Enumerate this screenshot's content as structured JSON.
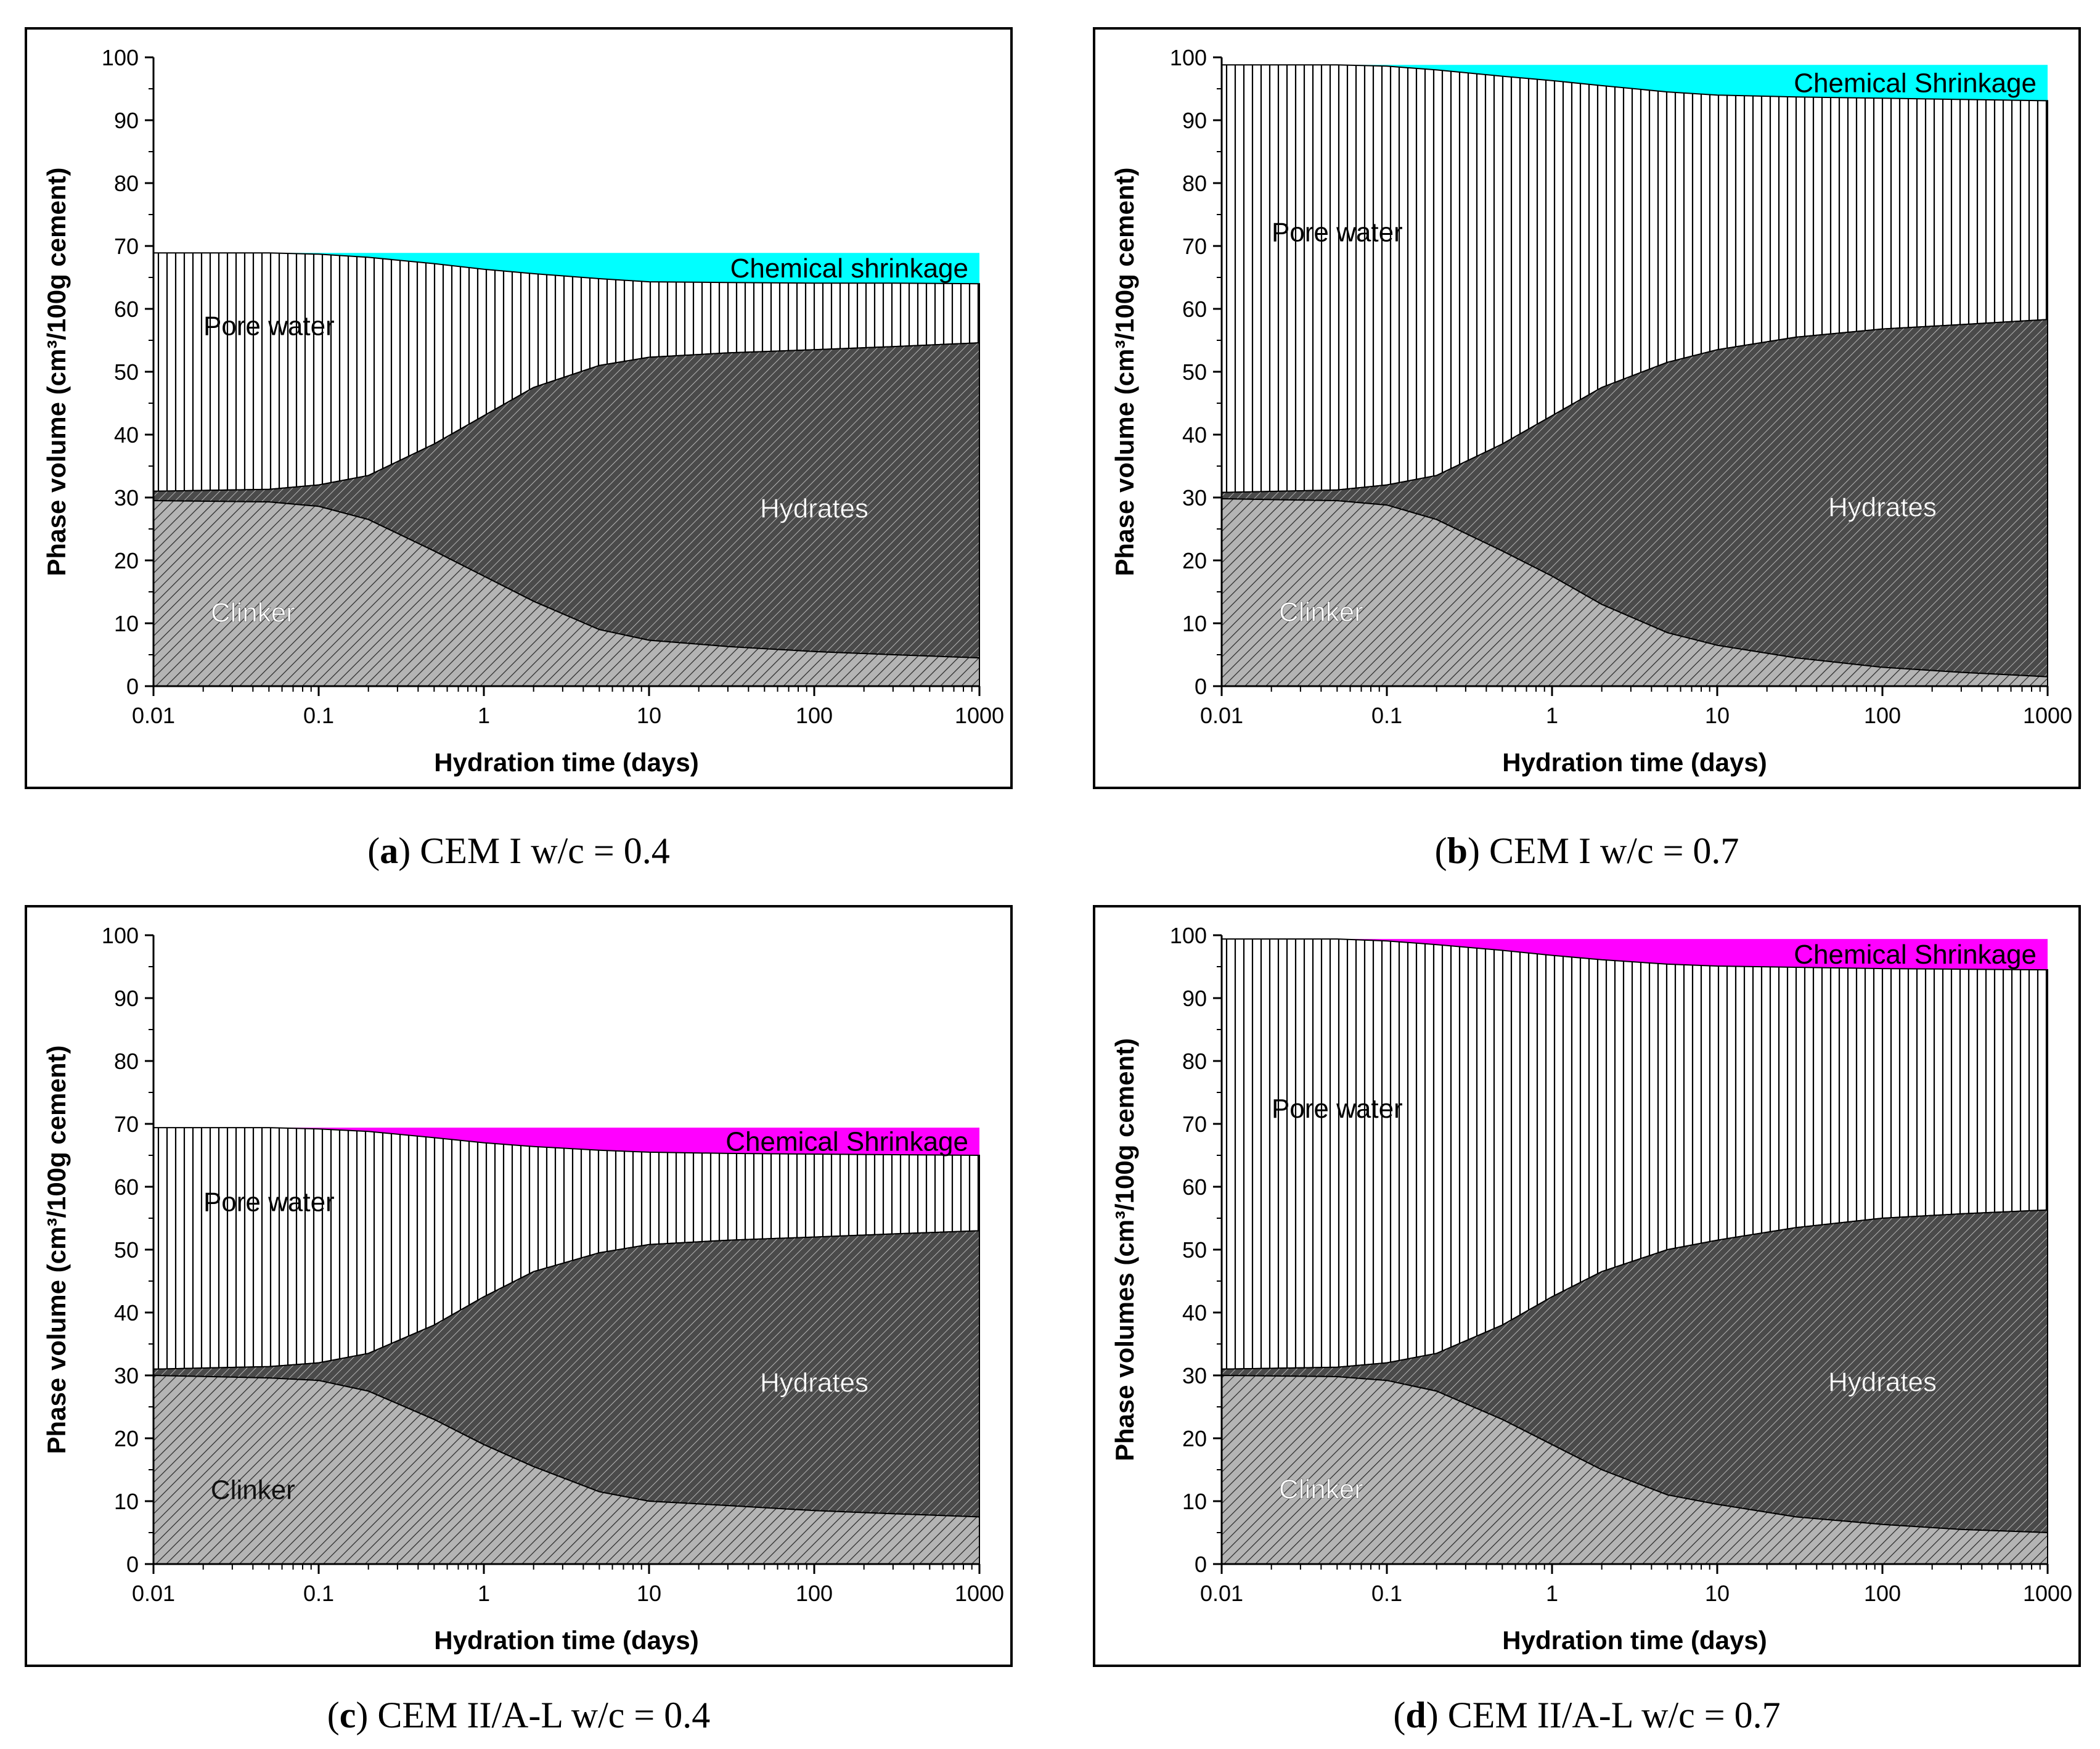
{
  "colors": {
    "background": "#ffffff",
    "clinker_fill": "#b4b4b4",
    "hydrates_fill": "#4a4a4a",
    "pore_water_fill": "#ffffff",
    "shrinkage_cyan": "#00ffff",
    "shrinkage_magenta": "#ff00ff"
  },
  "chart_data": [
    {
      "type": "area",
      "caption_letter": "a",
      "caption_text": " CEM I w/c = 0.4",
      "xlabel": "Hydration time (days)",
      "ylabel": "Phase volume (cm³/100g cement)",
      "xscale": "log",
      "xlim": [
        0.01,
        1000
      ],
      "ylim": [
        0,
        100
      ],
      "x_ticks": [
        "0.01",
        "0.1",
        "1",
        "10",
        "100",
        "1000"
      ],
      "y_ticks": [
        "0",
        "10",
        "20",
        "30",
        "40",
        "50",
        "60",
        "70",
        "80",
        "90",
        "100"
      ],
      "shrinkage_color": "cyan",
      "labels": {
        "clinker": "Clinker",
        "hydrates": "Hydrates",
        "pore_water": "Pore water",
        "shrinkage": "Chemical shrinkage"
      },
      "x": [
        0.01,
        0.05,
        0.1,
        0.2,
        0.5,
        1,
        2,
        5,
        10,
        30,
        100,
        300,
        1000
      ],
      "series": [
        {
          "name": "Clinker",
          "values": [
            29.5,
            29.3,
            28.6,
            26.5,
            21.5,
            17.5,
            13.5,
            9.0,
            7.3,
            6.3,
            5.5,
            5.0,
            4.5
          ]
        },
        {
          "name": "Hydrates (cumulative)",
          "values": [
            31.0,
            31.3,
            32.0,
            33.5,
            38.5,
            43.0,
            47.5,
            51.0,
            52.3,
            53.0,
            53.5,
            54.0,
            54.6
          ]
        },
        {
          "name": "Pore water (cumulative)",
          "values": [
            68.9,
            68.9,
            68.7,
            68.2,
            67.2,
            66.3,
            65.6,
            64.8,
            64.3,
            64.2,
            64.1,
            64.1,
            64.0
          ]
        },
        {
          "name": "Total incl. chemical shrinkage",
          "values": [
            68.9,
            68.9,
            68.9,
            68.9,
            68.9,
            68.9,
            68.9,
            68.9,
            68.9,
            68.9,
            68.9,
            68.9,
            68.9
          ]
        }
      ]
    },
    {
      "type": "area",
      "caption_letter": "b",
      "caption_text": " CEM I w/c = 0.7",
      "xlabel": "Hydration time (days)",
      "ylabel": "Phase volume (cm³/100g cement)",
      "xscale": "log",
      "xlim": [
        0.01,
        1000
      ],
      "ylim": [
        0,
        100
      ],
      "x_ticks": [
        "0.01",
        "0.1",
        "1",
        "10",
        "100",
        "1000"
      ],
      "y_ticks": [
        "0",
        "10",
        "20",
        "30",
        "40",
        "50",
        "60",
        "70",
        "80",
        "90",
        "100"
      ],
      "shrinkage_color": "cyan",
      "labels": {
        "clinker": "Clinker",
        "hydrates": "Hydrates",
        "pore_water": "Pore water",
        "shrinkage": "Chemical Shrinkage"
      },
      "x": [
        0.01,
        0.05,
        0.1,
        0.2,
        0.5,
        1,
        2,
        5,
        10,
        30,
        100,
        300,
        1000
      ],
      "series": [
        {
          "name": "Clinker",
          "values": [
            29.8,
            29.5,
            28.8,
            26.5,
            21.5,
            17.5,
            13.0,
            8.5,
            6.5,
            4.5,
            3.0,
            2.2,
            1.5
          ]
        },
        {
          "name": "Hydrates (cumulative)",
          "values": [
            30.8,
            31.2,
            32.0,
            33.5,
            38.5,
            43.0,
            47.5,
            51.5,
            53.5,
            55.5,
            56.8,
            57.5,
            58.3
          ]
        },
        {
          "name": "Pore water (cumulative)",
          "values": [
            98.8,
            98.8,
            98.6,
            98.0,
            97.0,
            96.3,
            95.5,
            94.5,
            94.0,
            93.7,
            93.5,
            93.3,
            93.1
          ]
        },
        {
          "name": "Total incl. chemical shrinkage",
          "values": [
            98.8,
            98.8,
            98.8,
            98.8,
            98.8,
            98.8,
            98.8,
            98.8,
            98.8,
            98.8,
            98.8,
            98.8,
            98.8
          ]
        }
      ]
    },
    {
      "type": "area",
      "caption_letter": "c",
      "caption_text": " CEM II/A-L w/c = 0.4",
      "xlabel": "Hydration time (days)",
      "ylabel": "Phase volume (cm³/100g cement)",
      "xscale": "log",
      "xlim": [
        0.01,
        1000
      ],
      "ylim": [
        0,
        100
      ],
      "x_ticks": [
        "0.01",
        "0.1",
        "1",
        "10",
        "100",
        "1000"
      ],
      "y_ticks": [
        "0",
        "10",
        "20",
        "30",
        "40",
        "50",
        "60",
        "70",
        "80",
        "90",
        "100"
      ],
      "shrinkage_color": "magenta",
      "labels": {
        "clinker": "Clinker",
        "hydrates": "Hydrates",
        "pore_water": "Pore water",
        "shrinkage": "Chemical Shrinkage"
      },
      "x": [
        0.01,
        0.05,
        0.1,
        0.2,
        0.5,
        1,
        2,
        5,
        10,
        30,
        100,
        300,
        1000
      ],
      "series": [
        {
          "name": "Clinker",
          "values": [
            30.0,
            29.6,
            29.2,
            27.5,
            23.0,
            19.0,
            15.5,
            11.5,
            10.0,
            9.3,
            8.5,
            8.0,
            7.5
          ]
        },
        {
          "name": "Hydrates (cumulative)",
          "values": [
            31.0,
            31.4,
            32.0,
            33.5,
            38.0,
            42.5,
            46.5,
            49.5,
            50.8,
            51.5,
            52.0,
            52.5,
            53.0
          ]
        },
        {
          "name": "Pore water (cumulative)",
          "values": [
            69.4,
            69.4,
            69.2,
            68.8,
            67.8,
            67.0,
            66.4,
            65.8,
            65.5,
            65.3,
            65.2,
            65.1,
            65.0
          ]
        },
        {
          "name": "Total incl. chemical shrinkage",
          "values": [
            69.4,
            69.4,
            69.4,
            69.4,
            69.4,
            69.4,
            69.4,
            69.4,
            69.4,
            69.4,
            69.4,
            69.4,
            69.4
          ]
        }
      ]
    },
    {
      "type": "area",
      "caption_letter": "d",
      "caption_text": " CEM II/A-L w/c = 0.7",
      "xlabel": "Hydration time (days)",
      "ylabel": "Phase volumes (cm³/100g cement)",
      "xscale": "log",
      "xlim": [
        0.01,
        1000
      ],
      "ylim": [
        0,
        100
      ],
      "x_ticks": [
        "0.01",
        "0.1",
        "1",
        "10",
        "100",
        "1000"
      ],
      "y_ticks": [
        "0",
        "10",
        "20",
        "30",
        "40",
        "50",
        "60",
        "70",
        "80",
        "90",
        "100"
      ],
      "shrinkage_color": "magenta",
      "labels": {
        "clinker": "Clinker",
        "hydrates": "Hydrates",
        "pore_water": "Pore water",
        "shrinkage": "Chemical Shrinkage"
      },
      "x": [
        0.01,
        0.05,
        0.1,
        0.2,
        0.5,
        1,
        2,
        5,
        10,
        30,
        100,
        300,
        1000
      ],
      "series": [
        {
          "name": "Clinker",
          "values": [
            30.0,
            29.8,
            29.2,
            27.5,
            23.0,
            19.0,
            15.0,
            11.0,
            9.5,
            7.5,
            6.3,
            5.5,
            5.0
          ]
        },
        {
          "name": "Hydrates (cumulative)",
          "values": [
            31.0,
            31.3,
            32.0,
            33.5,
            38.0,
            42.5,
            46.5,
            50.0,
            51.5,
            53.5,
            55.0,
            55.7,
            56.3
          ]
        },
        {
          "name": "Pore water (cumulative)",
          "values": [
            99.4,
            99.4,
            99.1,
            98.5,
            97.6,
            96.8,
            96.1,
            95.4,
            95.1,
            94.9,
            94.7,
            94.6,
            94.5
          ]
        },
        {
          "name": "Total incl. chemical shrinkage",
          "values": [
            99.4,
            99.4,
            99.4,
            99.4,
            99.4,
            99.4,
            99.4,
            99.4,
            99.4,
            99.4,
            99.4,
            99.4,
            99.4
          ]
        }
      ]
    }
  ]
}
